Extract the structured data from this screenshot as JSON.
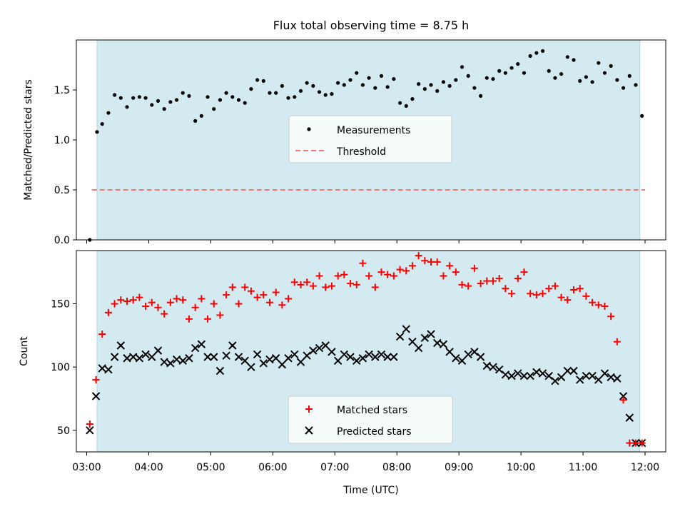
{
  "chart_data": [
    {
      "type": "scatter",
      "title": "Flux total observing time = 8.75 h",
      "xlabel": "",
      "ylabel": "Matched/Predicted stars",
      "xlim": [
        "02:50",
        "12:20"
      ],
      "ylim": [
        0,
        2.0
      ],
      "yticks": [
        0.0,
        0.5,
        1.0,
        1.5
      ],
      "ytick_labels": [
        "0.0",
        "0.5",
        "1.0",
        "1.5"
      ],
      "grid": false,
      "legend": {
        "loc": "center",
        "entries": [
          "Measurements",
          "Threshold"
        ]
      },
      "observing_window": [
        "03:10",
        "11:55"
      ],
      "colors": {
        "window": "#d3eaf0",
        "threshold": "#f47a7a",
        "measurements": "#000000"
      },
      "series": [
        {
          "name": "Measurements",
          "kind": "scatter",
          "marker": "dot",
          "x": [
            "03:03",
            "03:10",
            "03:15",
            "03:21",
            "03:27",
            "03:33",
            "03:39",
            "03:45",
            "03:51",
            "03:57",
            "04:03",
            "04:09",
            "04:15",
            "04:21",
            "04:27",
            "04:33",
            "04:39",
            "04:45",
            "04:51",
            "04:57",
            "05:03",
            "05:09",
            "05:15",
            "05:21",
            "05:27",
            "05:33",
            "05:39",
            "05:45",
            "05:51",
            "05:57",
            "06:03",
            "06:09",
            "06:15",
            "06:21",
            "06:27",
            "06:33",
            "06:39",
            "06:45",
            "06:51",
            "06:57",
            "07:03",
            "07:09",
            "07:15",
            "07:21",
            "07:27",
            "07:33",
            "07:39",
            "07:45",
            "07:51",
            "07:57",
            "08:03",
            "08:09",
            "08:15",
            "08:21",
            "08:27",
            "08:33",
            "08:39",
            "08:45",
            "08:51",
            "08:57",
            "09:03",
            "09:09",
            "09:15",
            "09:21",
            "09:27",
            "09:33",
            "09:39",
            "09:45",
            "09:51",
            "09:57",
            "10:03",
            "10:09",
            "10:15",
            "10:21",
            "10:27",
            "10:33",
            "10:39",
            "10:45",
            "10:51",
            "10:57",
            "11:03",
            "11:09",
            "11:15",
            "11:21",
            "11:27",
            "11:33",
            "11:39",
            "11:45",
            "11:51",
            "11:57"
          ],
          "y": [
            0.0,
            1.08,
            1.16,
            1.27,
            1.45,
            1.42,
            1.33,
            1.42,
            1.43,
            1.42,
            1.35,
            1.39,
            1.31,
            1.38,
            1.4,
            1.47,
            1.44,
            1.19,
            1.24,
            1.43,
            1.31,
            1.4,
            1.47,
            1.43,
            1.4,
            1.37,
            1.51,
            1.6,
            1.59,
            1.47,
            1.47,
            1.54,
            1.42,
            1.43,
            1.49,
            1.57,
            1.54,
            1.48,
            1.45,
            1.46,
            1.57,
            1.55,
            1.6,
            1.67,
            1.55,
            1.62,
            1.52,
            1.64,
            1.53,
            1.61,
            1.37,
            1.34,
            1.41,
            1.56,
            1.51,
            1.55,
            1.49,
            1.58,
            1.54,
            1.6,
            1.73,
            1.64,
            1.52,
            1.44,
            1.62,
            1.61,
            1.69,
            1.67,
            1.72,
            1.76,
            1.67,
            1.84,
            1.87,
            1.89,
            1.69,
            1.62,
            1.66,
            1.83,
            1.8,
            1.59,
            1.63,
            1.58,
            1.77,
            1.67,
            1.74,
            1.6,
            1.52,
            1.64,
            1.55,
            1.24
          ]
        },
        {
          "name": "Threshold",
          "kind": "line",
          "style": "dashed",
          "x": [
            "03:05",
            "12:00"
          ],
          "y": [
            0.5,
            0.5
          ]
        }
      ]
    },
    {
      "type": "scatter",
      "title": "",
      "xlabel": "Time (UTC)",
      "ylabel": "Count",
      "xlim": [
        "02:50",
        "12:20"
      ],
      "ylim": [
        33,
        192
      ],
      "yticks": [
        50,
        100,
        150
      ],
      "ytick_labels": [
        "50",
        "100",
        "150"
      ],
      "xticks": [
        "03:00",
        "04:00",
        "05:00",
        "06:00",
        "07:00",
        "08:00",
        "09:00",
        "10:00",
        "11:00",
        "12:00"
      ],
      "grid": false,
      "legend": {
        "loc": "lower center",
        "entries": [
          "Matched stars",
          "Predicted stars"
        ]
      },
      "observing_window": [
        "03:10",
        "11:55"
      ],
      "colors": {
        "window": "#d3eaf0",
        "matched": "#ff0000",
        "predicted": "#000000"
      },
      "series": [
        {
          "name": "Matched stars",
          "kind": "scatter",
          "marker": "plus",
          "x": [
            "03:03",
            "03:09",
            "03:15",
            "03:21",
            "03:27",
            "03:33",
            "03:39",
            "03:45",
            "03:51",
            "03:57",
            "04:03",
            "04:09",
            "04:15",
            "04:21",
            "04:27",
            "04:33",
            "04:39",
            "04:45",
            "04:51",
            "04:57",
            "05:03",
            "05:09",
            "05:15",
            "05:21",
            "05:27",
            "05:33",
            "05:39",
            "05:45",
            "05:51",
            "05:57",
            "06:03",
            "06:09",
            "06:15",
            "06:21",
            "06:27",
            "06:33",
            "06:39",
            "06:45",
            "06:51",
            "06:57",
            "07:03",
            "07:09",
            "07:15",
            "07:21",
            "07:27",
            "07:33",
            "07:39",
            "07:45",
            "07:51",
            "07:57",
            "08:03",
            "08:09",
            "08:15",
            "08:21",
            "08:27",
            "08:33",
            "08:39",
            "08:45",
            "08:51",
            "08:57",
            "09:03",
            "09:09",
            "09:15",
            "09:21",
            "09:27",
            "09:33",
            "09:39",
            "09:45",
            "09:51",
            "09:57",
            "10:03",
            "10:09",
            "10:15",
            "10:21",
            "10:27",
            "10:33",
            "10:39",
            "10:45",
            "10:51",
            "10:57",
            "11:03",
            "11:09",
            "11:15",
            "11:21",
            "11:27",
            "11:33",
            "11:39",
            "11:45",
            "11:51",
            "11:57"
          ],
          "y": [
            55,
            90,
            126,
            143,
            150,
            153,
            152,
            153,
            155,
            148,
            151,
            147,
            142,
            151,
            154,
            153,
            138,
            147,
            154,
            138,
            150,
            141,
            157,
            163,
            150,
            163,
            160,
            155,
            157,
            151,
            159,
            149,
            154,
            167,
            165,
            167,
            164,
            172,
            163,
            164,
            172,
            173,
            166,
            165,
            182,
            172,
            163,
            175,
            173,
            172,
            177,
            176,
            180,
            188,
            184,
            183,
            183,
            172,
            180,
            175,
            165,
            164,
            178,
            166,
            168,
            168,
            170,
            162,
            158,
            170,
            175,
            158,
            157,
            158,
            162,
            164,
            155,
            153,
            161,
            162,
            156,
            151,
            149,
            148,
            140,
            120,
            74,
            40,
            40,
            40
          ]
        },
        {
          "name": "Predicted stars",
          "kind": "scatter",
          "marker": "x",
          "x": [
            "03:03",
            "03:09",
            "03:15",
            "03:21",
            "03:27",
            "03:33",
            "03:39",
            "03:45",
            "03:51",
            "03:57",
            "04:03",
            "04:09",
            "04:15",
            "04:21",
            "04:27",
            "04:33",
            "04:39",
            "04:45",
            "04:51",
            "04:57",
            "05:03",
            "05:09",
            "05:15",
            "05:21",
            "05:27",
            "05:33",
            "05:39",
            "05:45",
            "05:51",
            "05:57",
            "06:03",
            "06:09",
            "06:15",
            "06:21",
            "06:27",
            "06:33",
            "06:39",
            "06:45",
            "06:51",
            "06:57",
            "07:03",
            "07:09",
            "07:15",
            "07:21",
            "07:27",
            "07:33",
            "07:39",
            "07:45",
            "07:51",
            "07:57",
            "08:03",
            "08:09",
            "08:15",
            "08:21",
            "08:27",
            "08:33",
            "08:39",
            "08:45",
            "08:51",
            "08:57",
            "09:03",
            "09:09",
            "09:15",
            "09:21",
            "09:27",
            "09:33",
            "09:39",
            "09:45",
            "09:51",
            "09:57",
            "10:03",
            "10:09",
            "10:15",
            "10:21",
            "10:27",
            "10:33",
            "10:39",
            "10:45",
            "10:51",
            "10:57",
            "11:03",
            "11:09",
            "11:15",
            "11:21",
            "11:27",
            "11:33",
            "11:39",
            "11:45",
            "11:51",
            "11:57"
          ],
          "y": [
            50,
            77,
            99,
            98,
            108,
            117,
            107,
            108,
            107,
            110,
            108,
            113,
            104,
            103,
            106,
            105,
            107,
            115,
            118,
            108,
            108,
            97,
            109,
            117,
            108,
            105,
            100,
            110,
            103,
            106,
            107,
            102,
            107,
            110,
            104,
            109,
            113,
            115,
            117,
            112,
            105,
            110,
            108,
            105,
            107,
            110,
            108,
            110,
            108,
            108,
            124,
            130,
            120,
            115,
            123,
            126,
            119,
            118,
            112,
            107,
            105,
            110,
            112,
            108,
            101,
            100,
            98,
            94,
            93,
            95,
            93,
            93,
            96,
            95,
            93,
            89,
            92,
            97,
            97,
            90,
            93,
            93,
            90,
            95,
            92,
            91,
            77,
            60,
            40,
            40
          ]
        }
      ]
    }
  ]
}
